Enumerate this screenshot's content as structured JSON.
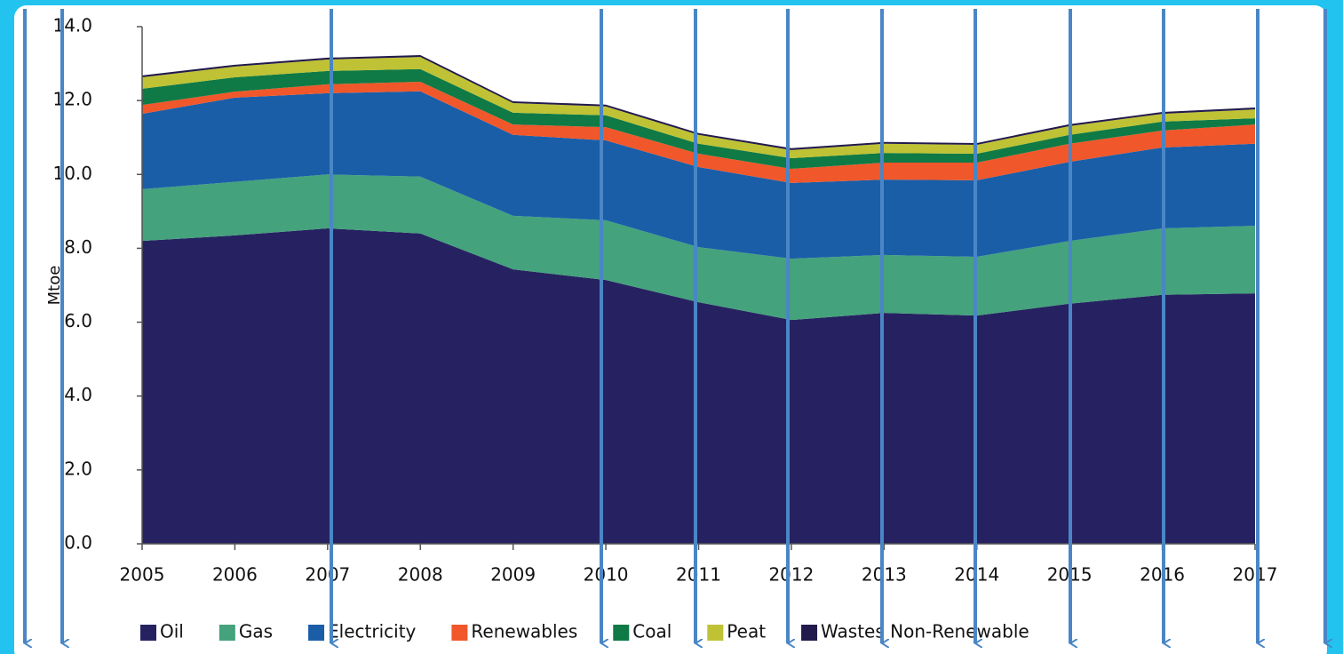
{
  "chart_data": {
    "type": "stacked_area",
    "y_label": "Mtoe",
    "x": [
      2005,
      2006,
      2007,
      2008,
      2009,
      2010,
      2011,
      2012,
      2013,
      2014,
      2015,
      2016,
      2017
    ],
    "xlim": [
      2005,
      2017
    ],
    "xticks": [
      2005,
      2006,
      2007,
      2008,
      2009,
      2010,
      2011,
      2012,
      2013,
      2014,
      2015,
      2016,
      2017
    ],
    "ylim": [
      0,
      14
    ],
    "yticks": [
      {
        "value": 0,
        "label": "0.0"
      },
      {
        "value": 2,
        "label": "2.0"
      },
      {
        "value": 4,
        "label": "4.0"
      },
      {
        "value": 6,
        "label": "6.0"
      },
      {
        "value": 8,
        "label": "8.0"
      },
      {
        "value": 10,
        "label": "10.0"
      },
      {
        "value": 12,
        "label": "12.0"
      },
      {
        "value": 14,
        "label": "14.0"
      }
    ],
    "grid": false,
    "legend": "bottom",
    "series": [
      {
        "name": "Oil",
        "color": "#262262",
        "values": [
          8.2,
          8.35,
          8.54,
          8.4,
          7.43,
          7.14,
          6.54,
          6.06,
          6.25,
          6.18,
          6.5,
          6.74,
          6.78
        ]
      },
      {
        "name": "Gas",
        "color": "#44a27c",
        "values": [
          1.4,
          1.45,
          1.46,
          1.54,
          1.45,
          1.62,
          1.49,
          1.66,
          1.57,
          1.59,
          1.7,
          1.8,
          1.83
        ]
      },
      {
        "name": "Electricity",
        "color": "#1a5ea8",
        "values": [
          2.04,
          2.28,
          2.2,
          2.31,
          2.19,
          2.16,
          2.17,
          2.05,
          2.04,
          2.07,
          2.14,
          2.19,
          2.22
        ]
      },
      {
        "name": "Renewables",
        "color": "#f0572a",
        "values": [
          0.24,
          0.16,
          0.24,
          0.26,
          0.28,
          0.36,
          0.36,
          0.38,
          0.46,
          0.48,
          0.49,
          0.46,
          0.52
        ]
      },
      {
        "name": "Coal",
        "color": "#0f7a45",
        "values": [
          0.44,
          0.39,
          0.36,
          0.34,
          0.32,
          0.32,
          0.27,
          0.29,
          0.26,
          0.24,
          0.24,
          0.24,
          0.17
        ]
      },
      {
        "name": "Peat",
        "color": "#bfc234",
        "values": [
          0.31,
          0.29,
          0.31,
          0.33,
          0.26,
          0.24,
          0.24,
          0.22,
          0.25,
          0.24,
          0.24,
          0.21,
          0.24
        ]
      },
      {
        "name": "Wastes Non-Renewable",
        "color": "#221a4c",
        "values": [
          0.05,
          0.05,
          0.05,
          0.05,
          0.05,
          0.05,
          0.05,
          0.05,
          0.05,
          0.05,
          0.05,
          0.05,
          0.05
        ]
      }
    ]
  }
}
